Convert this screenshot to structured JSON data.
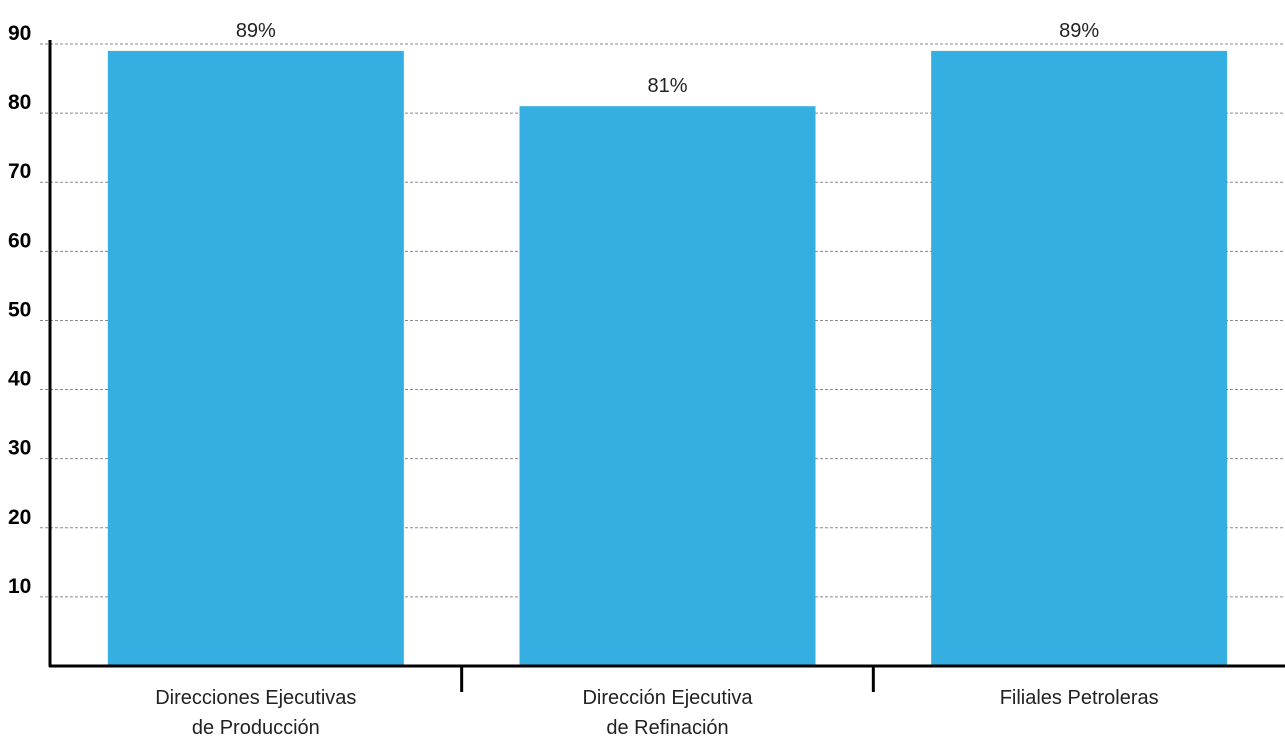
{
  "chart_data": {
    "type": "bar",
    "categories": [
      [
        "Direcciones Ejecutivas",
        "de Producción"
      ],
      [
        "Dirección Ejecutiva",
        "de Refinación"
      ],
      [
        "Filiales Petroleras"
      ]
    ],
    "values": [
      89,
      81,
      89
    ],
    "data_labels": [
      "89%",
      "81%",
      "89%"
    ],
    "yticks": [
      "10",
      "20",
      "30",
      "40",
      "50",
      "60",
      "70",
      "80",
      "90"
    ],
    "ylim": [
      0,
      90
    ],
    "grid": true,
    "title": "",
    "xlabel": "",
    "ylabel": "",
    "bar_color": "#35aee2"
  }
}
